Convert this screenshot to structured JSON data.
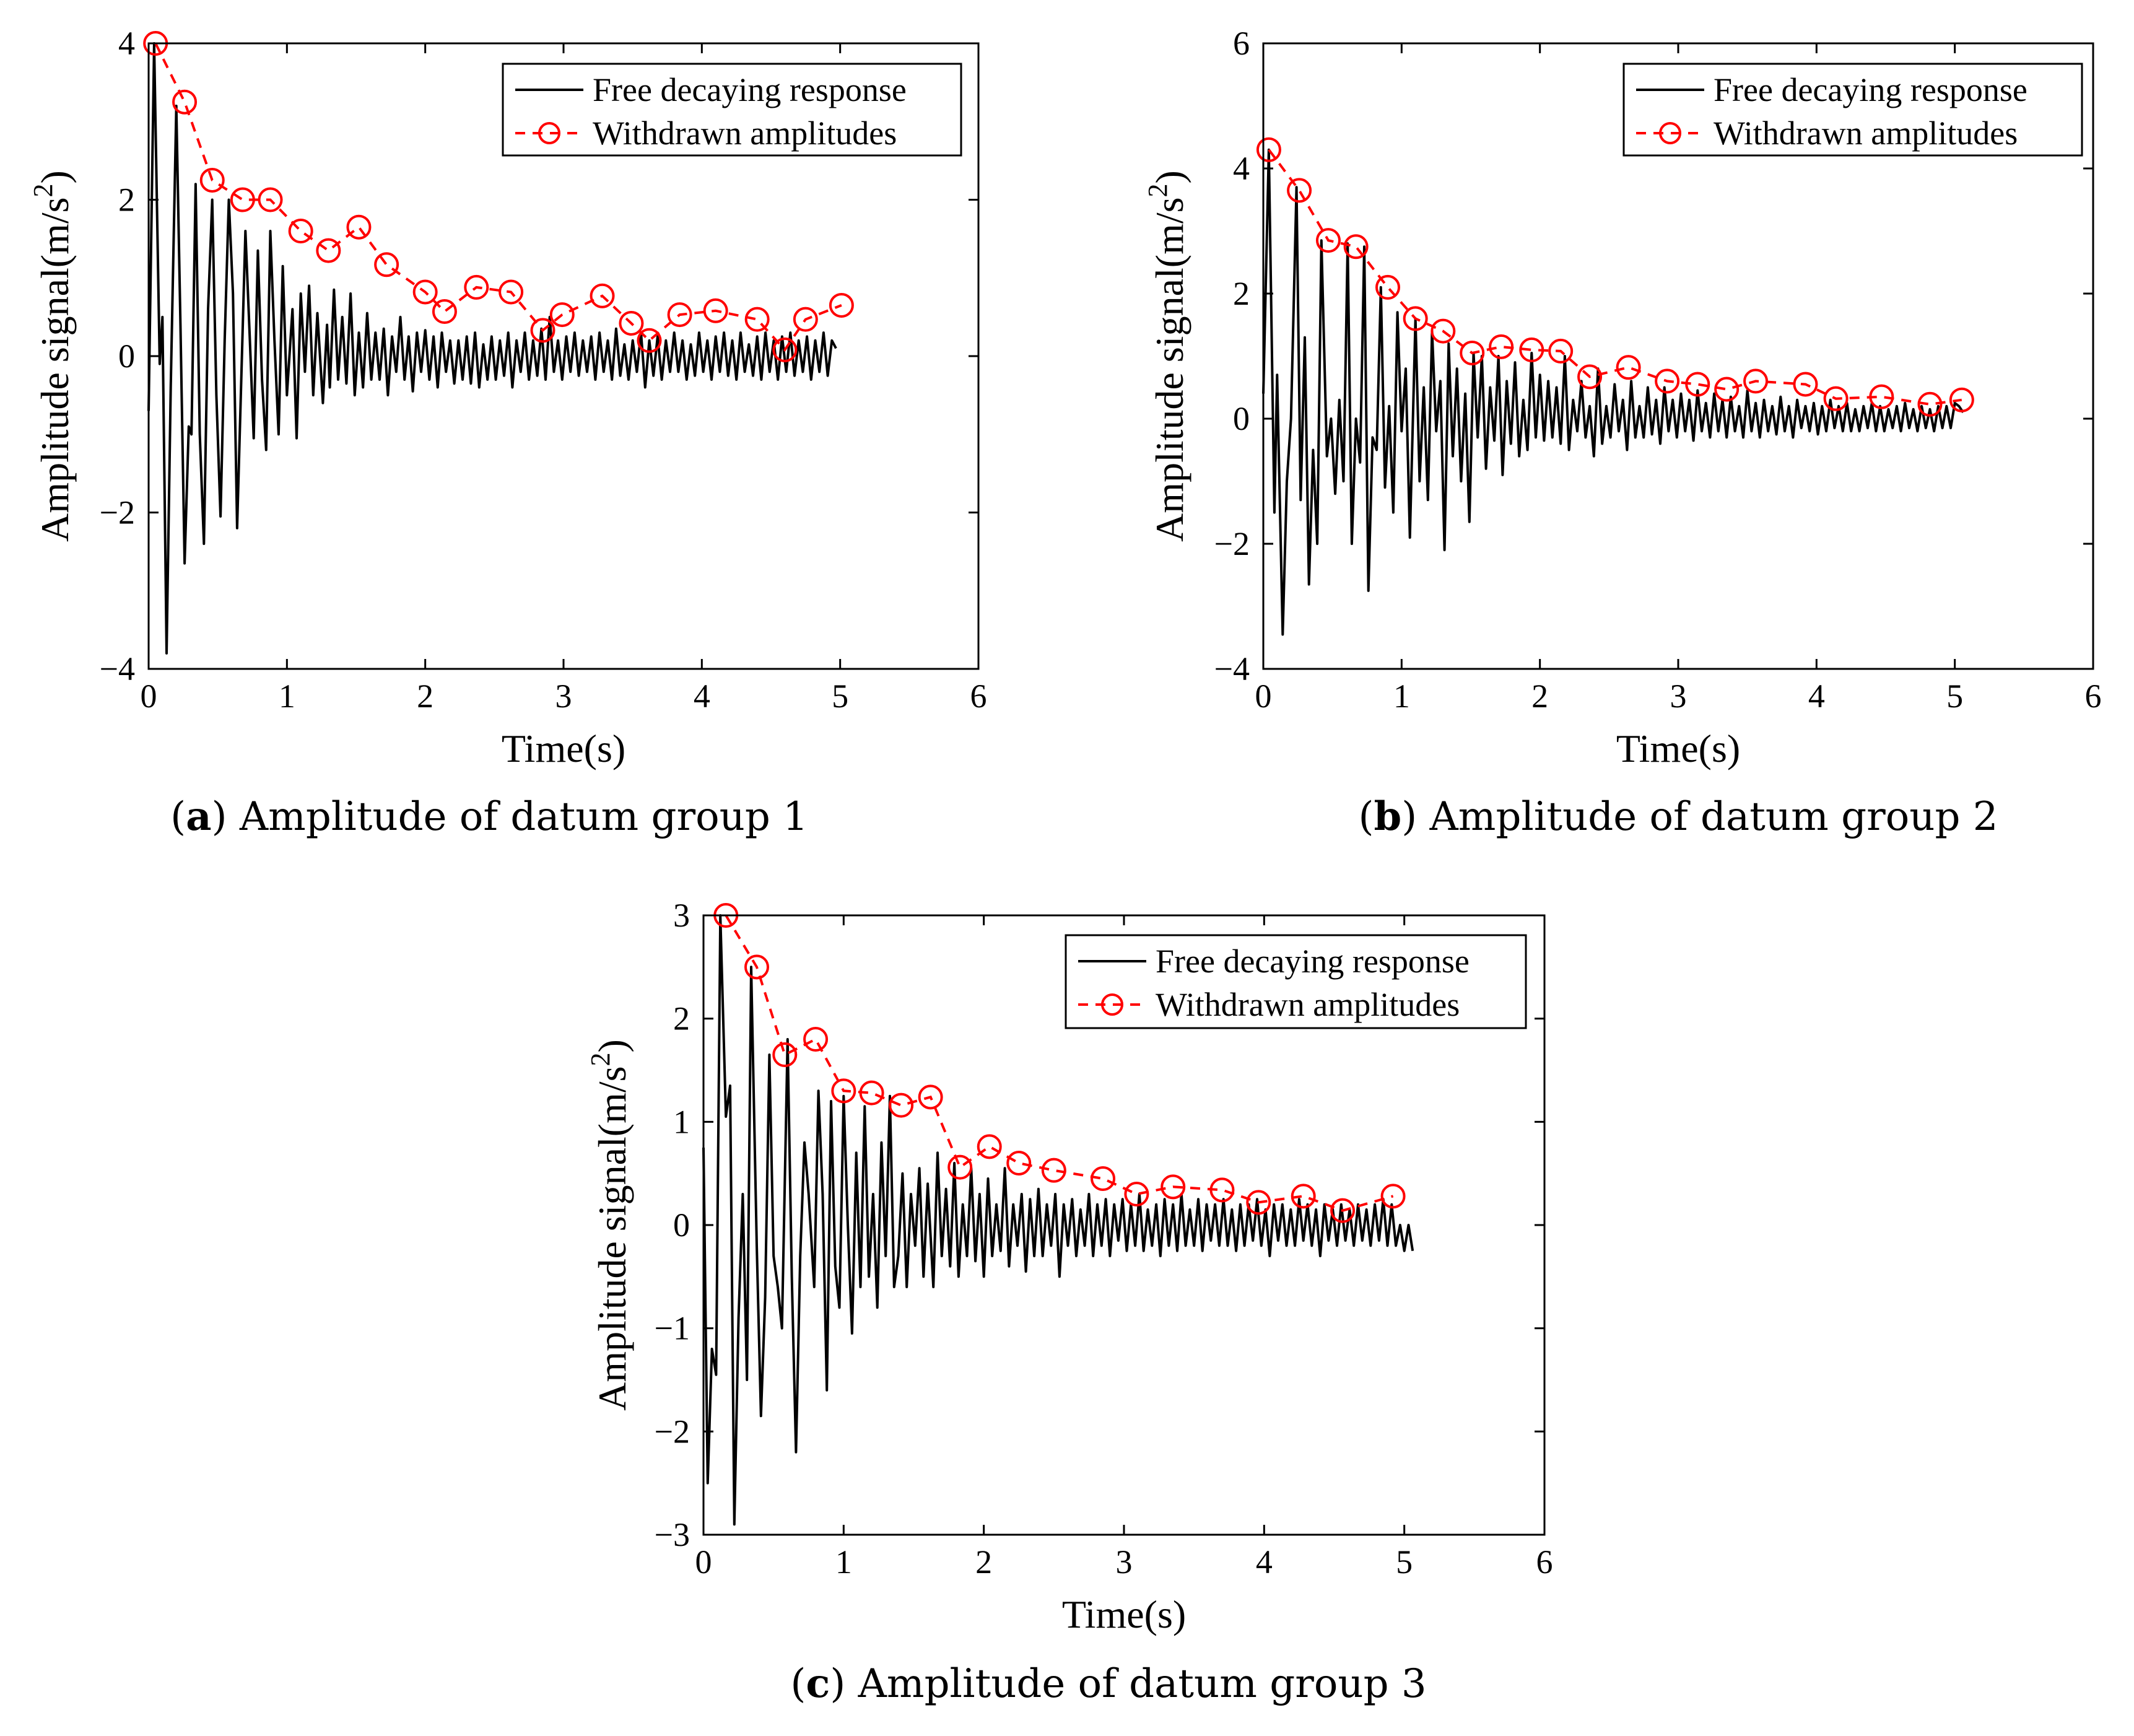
{
  "chart_data": [
    {
      "type": "line",
      "caption_letter": "a",
      "caption_text": "Amplitude of datum group 1",
      "xlabel": "Time(s)",
      "ylabel": "Amplitude signal(m/s",
      "ylabel_exp": "2",
      "ylabel_tail": ")",
      "xlim": [
        0,
        6
      ],
      "ylim": [
        -4,
        4
      ],
      "xticks": [
        "0",
        "1",
        "2",
        "3",
        "4",
        "5",
        "6"
      ],
      "yticks": [
        "−4",
        "−2",
        "0",
        "2",
        "4"
      ],
      "ytick_values": [
        -4,
        -2,
        0,
        2,
        4
      ],
      "legend": [
        "Free decaying response",
        "Withdrawn amplitudes"
      ],
      "response_color": "#000000",
      "amplitude_color": "#ff0000",
      "response_time": [
        0,
        0.04,
        0.08,
        0.1,
        0.13,
        0.16,
        0.2,
        0.23,
        0.26,
        0.29,
        0.31,
        0.34,
        0.37,
        0.4,
        0.43,
        0.46,
        0.49,
        0.52,
        0.55,
        0.58,
        0.61,
        0.64,
        0.67,
        0.7,
        0.73,
        0.76,
        0.79,
        0.82,
        0.85,
        0.88,
        0.91,
        0.94,
        0.97,
        1.0,
        1.04,
        1.07,
        1.1,
        1.13,
        1.16,
        1.19,
        1.22,
        1.26,
        1.29,
        1.31,
        1.34,
        1.37,
        1.4,
        1.43,
        1.46,
        1.49,
        1.52,
        1.55,
        1.58,
        1.61,
        1.64,
        1.67,
        1.7,
        1.73,
        1.76,
        1.79,
        1.82,
        1.85,
        1.88,
        1.91,
        1.94,
        1.97,
        2.0,
        2.03,
        2.06,
        2.09,
        2.12,
        2.15,
        2.18,
        2.21,
        2.24,
        2.27,
        2.3,
        2.33,
        2.36,
        2.39,
        2.42,
        2.45,
        2.48,
        2.51,
        2.54,
        2.57,
        2.6,
        2.63,
        2.66,
        2.69,
        2.72,
        2.75,
        2.78,
        2.81,
        2.84,
        2.87,
        2.9,
        2.93,
        2.96,
        2.99,
        3.02,
        3.05,
        3.08,
        3.11,
        3.14,
        3.17,
        3.2,
        3.23,
        3.26,
        3.29,
        3.32,
        3.35,
        3.38,
        3.41,
        3.44,
        3.47,
        3.5,
        3.53,
        3.56,
        3.59,
        3.62,
        3.65,
        3.68,
        3.71,
        3.74,
        3.77,
        3.8,
        3.83,
        3.86,
        3.89,
        3.92,
        3.95,
        3.98,
        4.01,
        4.04,
        4.07,
        4.1,
        4.13,
        4.16,
        4.19,
        4.22,
        4.25,
        4.28,
        4.31,
        4.34,
        4.37,
        4.4,
        4.43,
        4.46,
        4.49,
        4.52,
        4.55,
        4.58,
        4.61,
        4.64,
        4.67,
        4.7,
        4.73,
        4.76,
        4.79,
        4.82,
        4.85,
        4.88,
        4.91,
        4.94,
        4.97,
        5.0,
        5.03,
        5.06,
        5.1
      ],
      "response_values": [
        -0.7,
        4.0,
        -0.1,
        0.5,
        -3.8,
        -0.4,
        3.2,
        0.4,
        -2.65,
        -0.9,
        -1.0,
        2.2,
        -1.0,
        -2.4,
        0.6,
        2.0,
        -0.5,
        -2.05,
        0.2,
        2.0,
        0.8,
        -2.2,
        -0.3,
        1.6,
        0.3,
        -1.05,
        1.35,
        -0.3,
        -1.2,
        1.6,
        0.2,
        -1.0,
        1.15,
        -0.5,
        0.6,
        -1.05,
        0.8,
        -0.2,
        0.9,
        -0.5,
        0.55,
        -0.6,
        0.4,
        -0.4,
        0.85,
        -0.3,
        0.5,
        -0.35,
        0.8,
        -0.5,
        0.3,
        -0.4,
        0.55,
        -0.3,
        0.3,
        -0.3,
        0.35,
        -0.5,
        0.25,
        -0.2,
        0.5,
        -0.3,
        0.25,
        -0.45,
        0.3,
        -0.2,
        0.33,
        -0.3,
        0.25,
        -0.4,
        0.3,
        -0.2,
        0.2,
        -0.35,
        0.2,
        -0.3,
        0.25,
        -0.35,
        0.3,
        -0.4,
        0.15,
        -0.3,
        0.25,
        -0.3,
        0.2,
        -0.25,
        0.3,
        -0.4,
        0.2,
        -0.2,
        0.3,
        -0.3,
        0.2,
        -0.25,
        0.35,
        -0.3,
        0.5,
        -0.2,
        0.2,
        -0.3,
        0.25,
        -0.2,
        0.3,
        -0.25,
        0.2,
        -0.2,
        0.25,
        -0.3,
        0.3,
        -0.2,
        0.2,
        -0.3,
        0.35,
        -0.25,
        0.15,
        -0.3,
        0.2,
        -0.2,
        0.3,
        -0.4,
        0.2,
        -0.25,
        0.25,
        -0.3,
        0.2,
        -0.2,
        0.3,
        -0.2,
        0.2,
        -0.3,
        0.15,
        -0.25,
        0.3,
        -0.2,
        0.2,
        -0.3,
        0.25,
        -0.2,
        0.3,
        -0.25,
        0.2,
        -0.3,
        0.3,
        -0.2,
        0.15,
        -0.25,
        0.25,
        -0.3,
        0.3,
        -0.2,
        0.2,
        -0.3,
        0.25,
        -0.2,
        0.3,
        -0.25,
        0.2,
        -0.2,
        0.25,
        -0.3,
        0.2,
        -0.2,
        0.3,
        -0.25,
        0.2,
        0.1
      ],
      "amp_time": [
        0.05,
        0.26,
        0.46,
        0.68,
        0.88,
        1.1,
        1.3,
        1.52,
        1.72,
        2.0,
        2.14,
        2.37,
        2.62,
        2.85,
        2.99,
        3.28,
        3.49,
        3.62,
        3.84,
        4.1,
        4.4,
        4.6,
        4.75,
        5.01
      ],
      "amp_values": [
        4.0,
        3.25,
        2.25,
        2.0,
        2.0,
        1.6,
        1.35,
        1.65,
        1.17,
        0.82,
        0.57,
        0.88,
        0.82,
        0.33,
        0.53,
        0.77,
        0.42,
        0.2,
        0.53,
        0.58,
        0.47,
        0.08,
        0.47,
        0.65
      ]
    },
    {
      "type": "line",
      "caption_letter": "b",
      "caption_text": "Amplitude of datum group 2",
      "xlabel": "Time(s)",
      "ylabel": "Amplitude signal(m/s",
      "ylabel_exp": "2",
      "ylabel_tail": ")",
      "xlim": [
        0,
        6
      ],
      "ylim": [
        -4,
        6
      ],
      "xticks": [
        "0",
        "1",
        "2",
        "3",
        "4",
        "5",
        "6"
      ],
      "yticks": [
        "−4",
        "−2",
        "0",
        "2",
        "4",
        "6"
      ],
      "ytick_values": [
        -4,
        -2,
        0,
        2,
        4,
        6
      ],
      "legend": [
        "Free decaying response",
        "Withdrawn amplitudes"
      ],
      "response_color": "#000000",
      "amplitude_color": "#ff0000",
      "response_time": [
        0,
        0.04,
        0.08,
        0.1,
        0.14,
        0.17,
        0.2,
        0.24,
        0.27,
        0.3,
        0.33,
        0.36,
        0.39,
        0.42,
        0.46,
        0.49,
        0.52,
        0.55,
        0.58,
        0.61,
        0.64,
        0.67,
        0.7,
        0.73,
        0.76,
        0.79,
        0.82,
        0.85,
        0.88,
        0.91,
        0.94,
        0.97,
        1.0,
        1.03,
        1.06,
        1.1,
        1.13,
        1.16,
        1.19,
        1.22,
        1.25,
        1.28,
        1.31,
        1.34,
        1.37,
        1.4,
        1.43,
        1.46,
        1.49,
        1.52,
        1.55,
        1.58,
        1.61,
        1.64,
        1.67,
        1.7,
        1.73,
        1.76,
        1.79,
        1.82,
        1.85,
        1.88,
        1.91,
        1.94,
        1.97,
        2.0,
        2.03,
        2.06,
        2.09,
        2.12,
        2.15,
        2.18,
        2.21,
        2.24,
        2.27,
        2.3,
        2.33,
        2.36,
        2.39,
        2.42,
        2.45,
        2.48,
        2.51,
        2.54,
        2.57,
        2.6,
        2.63,
        2.66,
        2.69,
        2.72,
        2.75,
        2.78,
        2.81,
        2.84,
        2.87,
        2.9,
        2.93,
        2.96,
        2.99,
        3.02,
        3.05,
        3.08,
        3.11,
        3.14,
        3.17,
        3.2,
        3.23,
        3.26,
        3.29,
        3.32,
        3.35,
        3.38,
        3.41,
        3.44,
        3.47,
        3.5,
        3.53,
        3.56,
        3.59,
        3.62,
        3.65,
        3.68,
        3.71,
        3.74,
        3.77,
        3.8,
        3.83,
        3.86,
        3.89,
        3.92,
        3.95,
        3.98,
        4.01,
        4.04,
        4.07,
        4.1,
        4.13,
        4.16,
        4.19,
        4.22,
        4.25,
        4.28,
        4.31,
        4.34,
        4.37,
        4.4,
        4.43,
        4.46,
        4.49,
        4.52,
        4.55,
        4.58,
        4.61,
        4.64,
        4.67,
        4.7,
        4.73,
        4.76,
        4.79,
        4.82,
        4.85,
        4.88,
        4.91,
        4.94,
        4.97,
        5.0,
        5.03,
        5.06,
        5.1
      ],
      "response_values": [
        0.4,
        4.3,
        -1.5,
        0.7,
        -3.45,
        -1.0,
        0.0,
        3.7,
        -1.3,
        1.3,
        -2.65,
        -0.5,
        -2.0,
        2.85,
        -0.6,
        0.0,
        -1.2,
        0.3,
        -1.0,
        2.8,
        -2.0,
        0.0,
        -0.7,
        2.75,
        -2.75,
        -0.3,
        -0.5,
        2.1,
        -1.1,
        0.2,
        -1.5,
        1.7,
        -0.2,
        0.8,
        -1.9,
        1.6,
        -1.0,
        0.5,
        -1.3,
        1.4,
        -0.2,
        0.6,
        -2.1,
        1.2,
        -0.6,
        0.8,
        -1.0,
        0.4,
        -1.65,
        1.05,
        -0.3,
        1.0,
        -0.8,
        0.5,
        -0.35,
        1.0,
        -0.9,
        0.6,
        -0.4,
        0.9,
        -0.6,
        0.3,
        -0.5,
        1.05,
        -0.3,
        0.7,
        -0.35,
        0.6,
        -0.3,
        0.5,
        -0.4,
        1.0,
        -0.5,
        0.3,
        -0.2,
        0.6,
        -0.3,
        0.2,
        -0.6,
        0.8,
        -0.4,
        0.2,
        -0.3,
        0.55,
        -0.2,
        0.3,
        -0.5,
        0.6,
        -0.3,
        0.2,
        -0.3,
        0.5,
        -0.25,
        0.3,
        -0.4,
        0.5,
        -0.2,
        0.3,
        -0.3,
        0.4,
        -0.2,
        0.3,
        -0.35,
        0.45,
        -0.2,
        0.25,
        -0.3,
        0.4,
        -0.2,
        0.3,
        -0.3,
        0.35,
        -0.2,
        0.2,
        -0.3,
        0.45,
        -0.2,
        0.25,
        -0.3,
        0.3,
        -0.2,
        0.2,
        -0.25,
        0.35,
        -0.2,
        0.2,
        -0.3,
        0.3,
        -0.15,
        0.2,
        -0.2,
        0.25,
        -0.25,
        0.2,
        -0.2,
        0.3,
        -0.15,
        0.2,
        -0.2,
        0.25,
        -0.2,
        0.15,
        -0.2,
        0.2,
        -0.15,
        0.25,
        -0.2,
        0.2,
        -0.2,
        0.15,
        -0.15,
        0.2,
        -0.2,
        0.25,
        -0.15,
        0.15,
        -0.2,
        0.2,
        -0.15,
        0.15,
        -0.2,
        0.2,
        -0.15,
        0.2,
        -0.15,
        0.25,
        0.2,
        0.1
      ],
      "amp_time": [
        0.04,
        0.26,
        0.47,
        0.67,
        0.9,
        1.1,
        1.3,
        1.51,
        1.72,
        1.94,
        2.15,
        2.36,
        2.64,
        2.92,
        3.14,
        3.35,
        3.56,
        3.92,
        4.14,
        4.47,
        4.82,
        5.05
      ],
      "amp_values": [
        4.3,
        3.65,
        2.85,
        2.75,
        2.1,
        1.6,
        1.4,
        1.05,
        1.15,
        1.1,
        1.08,
        0.67,
        0.82,
        0.6,
        0.55,
        0.47,
        0.6,
        0.55,
        0.32,
        0.35,
        0.23,
        0.3
      ]
    },
    {
      "type": "line",
      "caption_letter": "c",
      "caption_text": "Amplitude of datum group 3",
      "xlabel": "Time(s)",
      "ylabel": "Amplitude signal(m/s",
      "ylabel_exp": "2",
      "ylabel_tail": ")",
      "xlim": [
        0,
        6
      ],
      "ylim": [
        -3,
        3
      ],
      "xticks": [
        "0",
        "1",
        "2",
        "3",
        "4",
        "5",
        "6"
      ],
      "yticks": [
        "−3",
        "−2",
        "−1",
        "0",
        "1",
        "2",
        "3"
      ],
      "ytick_values": [
        -3,
        -2,
        -1,
        0,
        1,
        2,
        3
      ],
      "legend": [
        "Free decaying response",
        "Withdrawn amplitudes"
      ],
      "response_color": "#000000",
      "amplitude_color": "#ff0000",
      "response_time": [
        0,
        0.03,
        0.06,
        0.09,
        0.12,
        0.16,
        0.19,
        0.22,
        0.25,
        0.28,
        0.31,
        0.34,
        0.38,
        0.41,
        0.44,
        0.47,
        0.5,
        0.53,
        0.56,
        0.6,
        0.63,
        0.66,
        0.69,
        0.72,
        0.75,
        0.79,
        0.82,
        0.85,
        0.88,
        0.91,
        0.94,
        0.97,
        1.0,
        1.03,
        1.06,
        1.09,
        1.12,
        1.15,
        1.18,
        1.21,
        1.24,
        1.27,
        1.3,
        1.33,
        1.36,
        1.39,
        1.42,
        1.45,
        1.48,
        1.51,
        1.54,
        1.57,
        1.6,
        1.64,
        1.67,
        1.7,
        1.73,
        1.76,
        1.79,
        1.82,
        1.85,
        1.88,
        1.91,
        1.94,
        1.97,
        2.0,
        2.03,
        2.06,
        2.09,
        2.12,
        2.15,
        2.18,
        2.21,
        2.24,
        2.27,
        2.3,
        2.33,
        2.36,
        2.39,
        2.42,
        2.45,
        2.48,
        2.51,
        2.54,
        2.57,
        2.6,
        2.63,
        2.66,
        2.69,
        2.72,
        2.75,
        2.78,
        2.81,
        2.84,
        2.87,
        2.9,
        2.93,
        2.96,
        2.99,
        3.02,
        3.05,
        3.08,
        3.11,
        3.14,
        3.17,
        3.2,
        3.23,
        3.26,
        3.29,
        3.32,
        3.35,
        3.38,
        3.41,
        3.44,
        3.47,
        3.5,
        3.53,
        3.56,
        3.59,
        3.62,
        3.65,
        3.68,
        3.71,
        3.74,
        3.77,
        3.8,
        3.83,
        3.86,
        3.89,
        3.92,
        3.95,
        3.98,
        4.01,
        4.04,
        4.07,
        4.1,
        4.13,
        4.16,
        4.19,
        4.22,
        4.25,
        4.28,
        4.31,
        4.34,
        4.37,
        4.4,
        4.43,
        4.46,
        4.49,
        4.52,
        4.55,
        4.58,
        4.61,
        4.64,
        4.67,
        4.7,
        4.73,
        4.76,
        4.79,
        4.82,
        4.85,
        4.88,
        4.91,
        4.94,
        4.97,
        5.0,
        5.03,
        5.06,
        5.1
      ],
      "response_values": [
        0.75,
        -2.5,
        -1.2,
        -1.45,
        3.0,
        1.05,
        1.35,
        -2.9,
        -0.9,
        0.3,
        -1.5,
        2.5,
        -0.2,
        -1.85,
        -0.7,
        1.65,
        -0.3,
        -0.6,
        -1.0,
        1.8,
        -0.5,
        -2.2,
        -0.3,
        0.8,
        0.3,
        -0.6,
        1.3,
        0.3,
        -1.6,
        1.2,
        -0.4,
        -0.8,
        1.25,
        0.0,
        -1.05,
        0.7,
        -0.6,
        1.15,
        -0.5,
        0.3,
        -0.8,
        0.8,
        -0.3,
        1.25,
        -0.6,
        -0.3,
        0.5,
        -0.6,
        0.3,
        -0.2,
        0.55,
        -0.5,
        0.4,
        -0.6,
        0.7,
        -0.3,
        0.35,
        -0.4,
        0.6,
        -0.5,
        0.2,
        -0.3,
        0.55,
        -0.35,
        0.3,
        -0.5,
        0.45,
        -0.3,
        0.2,
        -0.25,
        0.55,
        -0.4,
        0.2,
        -0.2,
        0.3,
        -0.45,
        0.25,
        -0.3,
        0.35,
        -0.3,
        0.2,
        -0.2,
        0.3,
        -0.5,
        0.2,
        -0.2,
        0.25,
        -0.3,
        0.15,
        -0.2,
        0.3,
        -0.3,
        0.2,
        -0.2,
        0.25,
        -0.3,
        0.2,
        -0.15,
        0.25,
        -0.25,
        0.2,
        -0.2,
        0.3,
        -0.25,
        0.15,
        -0.2,
        0.2,
        -0.3,
        0.25,
        -0.2,
        0.2,
        -0.25,
        0.3,
        -0.2,
        0.15,
        -0.2,
        0.25,
        -0.25,
        0.2,
        -0.15,
        0.2,
        -0.2,
        0.25,
        -0.2,
        0.15,
        -0.25,
        0.2,
        -0.2,
        0.2,
        -0.15,
        0.25,
        -0.2,
        0.15,
        -0.3,
        0.2,
        -0.15,
        0.2,
        -0.2,
        0.15,
        -0.2,
        0.25,
        -0.15,
        0.2,
        -0.2,
        0.15,
        -0.3,
        0.2,
        -0.15,
        0.15,
        -0.2,
        0.2,
        -0.15,
        0.15,
        -0.2,
        0.2,
        -0.15,
        0.15,
        -0.2,
        0.2,
        -0.15,
        0.25,
        -0.2,
        0.2,
        -0.2,
        0.0,
        -0.25,
        0.0,
        -0.25
      ],
      "amp_time": [
        0.16,
        0.38,
        0.58,
        0.8,
        1.0,
        1.2,
        1.41,
        1.62,
        1.83,
        2.04,
        2.25,
        2.5,
        2.85,
        3.09,
        3.35,
        3.7,
        3.96,
        4.28,
        4.56,
        4.92
      ],
      "amp_values": [
        3.0,
        2.5,
        1.65,
        1.8,
        1.3,
        1.28,
        1.16,
        1.24,
        0.56,
        0.76,
        0.6,
        0.53,
        0.45,
        0.3,
        0.37,
        0.34,
        0.22,
        0.28,
        0.14,
        0.28
      ]
    }
  ]
}
